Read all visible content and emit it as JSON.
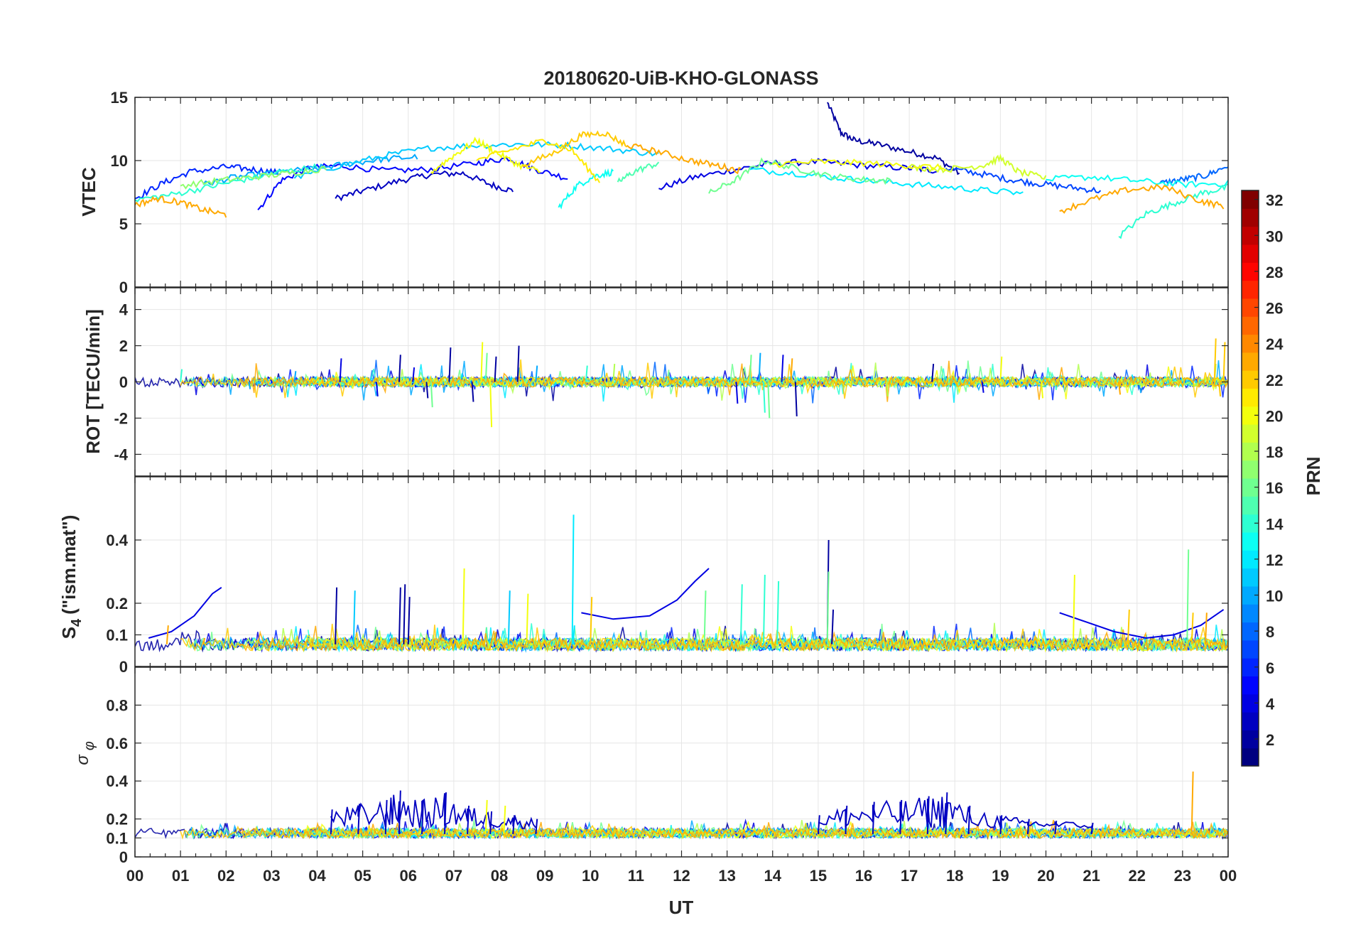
{
  "chart_data": [
    {
      "type": "line",
      "panel": "vtec",
      "title": "20180620-UiB-KHO-GLONASS",
      "xlabel": "",
      "ylabel": "VTEC",
      "xlim": [
        0,
        24
      ],
      "ylim": [
        0,
        15
      ],
      "yticks": [
        0,
        5,
        10,
        15
      ],
      "grid": true,
      "series": [
        {
          "prn": 2,
          "x": [
            15.2,
            15.5,
            15.8,
            16.3,
            17.0,
            17.6,
            18.1
          ],
          "y": [
            14.6,
            12.2,
            11.6,
            11.3,
            10.7,
            10.2,
            9.0
          ]
        },
        {
          "prn": 3,
          "x": [
            4.4,
            5.0,
            5.8,
            6.5,
            7.2,
            7.8,
            8.3
          ],
          "y": [
            7.0,
            7.6,
            8.4,
            8.9,
            9.0,
            8.1,
            7.6
          ]
        },
        {
          "prn": 4,
          "x": [
            11.5,
            12.3,
            13.2,
            14.0,
            15.0,
            16.0,
            17.0,
            17.6
          ],
          "y": [
            7.8,
            8.7,
            9.3,
            9.8,
            9.9,
            9.6,
            9.4,
            9.2
          ]
        },
        {
          "prn": 5,
          "x": [
            2.7,
            3.2,
            3.8,
            4.5,
            5.5,
            6.5,
            7.5,
            8.2,
            8.8,
            9.5
          ],
          "y": [
            6.1,
            8.4,
            9.4,
            9.6,
            9.2,
            9.3,
            9.8,
            10.2,
            9.3,
            8.6
          ]
        },
        {
          "prn": 6,
          "x": [
            0.0,
            0.6,
            1.2,
            2.0,
            2.6,
            3.2
          ],
          "y": [
            7.0,
            8.2,
            9.1,
            9.5,
            9.3,
            9.0
          ]
        },
        {
          "prn": 7,
          "x": [
            17.8,
            18.5,
            19.2,
            19.8,
            20.5,
            21.2
          ],
          "y": [
            9.4,
            9.0,
            8.5,
            8.2,
            7.9,
            7.6
          ]
        },
        {
          "prn": 8,
          "x": [
            22.5,
            23.0,
            23.5,
            24.0
          ],
          "y": [
            8.2,
            8.5,
            8.8,
            9.6
          ]
        },
        {
          "prn": 10,
          "x": [
            1.5,
            2.2,
            3.0,
            3.8,
            4.6,
            5.4,
            6.2
          ],
          "y": [
            8.1,
            8.7,
            9.0,
            9.3,
            9.7,
            10.1,
            10.3
          ]
        },
        {
          "prn": 11,
          "x": [
            3.5,
            4.5,
            5.5,
            6.5,
            7.5,
            8.5,
            9.5,
            10.5,
            11.5
          ],
          "y": [
            8.6,
            9.6,
            10.4,
            11.0,
            11.2,
            11.3,
            11.2,
            10.9,
            10.5
          ]
        },
        {
          "prn": 12,
          "x": [
            13.5,
            14.5,
            15.5,
            16.5,
            17.5,
            18.5,
            19.5
          ],
          "y": [
            9.3,
            9.0,
            8.6,
            8.3,
            8.0,
            7.7,
            7.4
          ]
        },
        {
          "prn": 13,
          "x": [
            9.3,
            9.7,
            10.1,
            10.5
          ],
          "y": [
            6.3,
            8.0,
            8.8,
            9.1
          ]
        },
        {
          "prn": 13,
          "x": [
            20.0,
            21.0,
            22.0,
            23.0,
            24.0
          ],
          "y": [
            8.5,
            8.7,
            8.4,
            8.1,
            8.2
          ]
        },
        {
          "prn": 14,
          "x": [
            0.0,
            0.8,
            1.6,
            2.4,
            3.2,
            4.0
          ],
          "y": [
            6.9,
            7.3,
            7.9,
            8.5,
            9.1,
            9.5
          ]
        },
        {
          "prn": 14,
          "x": [
            21.6,
            22.2,
            22.8,
            23.4,
            24.0
          ],
          "y": [
            4.0,
            5.8,
            6.6,
            7.4,
            7.9
          ]
        },
        {
          "prn": 15,
          "x": [
            10.6,
            11.0,
            11.5
          ],
          "y": [
            8.3,
            9.2,
            9.8
          ]
        },
        {
          "prn": 16,
          "x": [
            12.6,
            13.2,
            13.8,
            14.5,
            15.2,
            16.0,
            16.6
          ],
          "y": [
            7.4,
            8.5,
            10.0,
            9.4,
            8.8,
            8.5,
            8.4
          ]
        },
        {
          "prn": 17,
          "x": [
            1.0,
            1.8,
            2.6,
            3.4,
            4.2
          ],
          "y": [
            8.0,
            8.4,
            8.7,
            9.0,
            9.4
          ]
        },
        {
          "prn": 19,
          "x": [
            17.0,
            17.8,
            18.6,
            19.0,
            19.4,
            20.0
          ],
          "y": [
            9.5,
            9.3,
            9.6,
            10.2,
            9.1,
            8.6
          ]
        },
        {
          "prn": 20,
          "x": [
            6.5,
            7.0,
            7.5,
            7.9,
            8.4,
            8.9
          ],
          "y": [
            9.1,
            10.4,
            11.6,
            10.7,
            9.7,
            9.1
          ]
        },
        {
          "prn": 20,
          "x": [
            14.0,
            15.0,
            16.0,
            17.0,
            17.8
          ],
          "y": [
            9.7,
            9.9,
            9.8,
            9.6,
            9.4
          ]
        },
        {
          "prn": 21,
          "x": [
            7.5,
            8.3,
            9.0,
            9.6,
            10.2
          ],
          "y": [
            10.0,
            10.9,
            11.6,
            10.8,
            8.3
          ]
        },
        {
          "prn": 22,
          "x": [
            8.5,
            9.2,
            9.8,
            10.3,
            10.8
          ],
          "y": [
            9.6,
            10.6,
            12.0,
            12.2,
            11.2
          ]
        },
        {
          "prn": 23,
          "x": [
            0.0,
            0.5,
            1.0,
            1.5,
            2.0
          ],
          "y": [
            6.5,
            7.0,
            6.7,
            6.1,
            5.7
          ]
        },
        {
          "prn": 23,
          "x": [
            10.8,
            11.5,
            12.2,
            12.8,
            13.3
          ],
          "y": [
            11.2,
            10.7,
            10.0,
            9.6,
            9.2
          ]
        },
        {
          "prn": 23,
          "x": [
            20.3,
            21.0,
            21.8,
            22.6,
            23.4,
            23.9
          ],
          "y": [
            6.0,
            6.9,
            7.7,
            7.9,
            6.8,
            6.4
          ]
        }
      ]
    },
    {
      "type": "line",
      "panel": "rot",
      "xlabel": "",
      "ylabel": "ROT [TECU/min]",
      "xlim": [
        0,
        24
      ],
      "ylim": [
        -5.2,
        5.2
      ],
      "yticks": [
        -4,
        -2,
        0,
        2,
        4
      ],
      "grid": true,
      "series": [
        {
          "prn": 2,
          "x": [
            5.8,
            6.4,
            6.9,
            7.4,
            7.9,
            8.4,
            14.5,
            17.5
          ],
          "y": [
            1.5,
            -0.9,
            1.9,
            -1.1,
            1.4,
            2.0,
            -1.9,
            1.0
          ]
        },
        {
          "prn": 4,
          "x": [
            4.5,
            5.3,
            6.1,
            13.2,
            14.2,
            18.6
          ],
          "y": [
            1.3,
            -0.8,
            0.8,
            -1.2,
            1.5,
            -0.6
          ]
        },
        {
          "prn": 10,
          "x": [
            2.5,
            3.5,
            8.8,
            13.7
          ],
          "y": [
            -0.4,
            0.6,
            0.9,
            1.6
          ]
        },
        {
          "prn": 14,
          "x": [
            1.0,
            9.9,
            13.8
          ],
          "y": [
            0.7,
            0.9,
            -1.7
          ]
        },
        {
          "prn": 16,
          "x": [
            6.5,
            7.7,
            13.5,
            13.9
          ],
          "y": [
            -1.4,
            1.6,
            1.5,
            -2.0
          ]
        },
        {
          "prn": 18,
          "x": [
            10.5,
            16.5,
            23.7
          ],
          "y": [
            1.0,
            -0.8,
            1.0
          ]
        },
        {
          "prn": 20,
          "x": [
            7.6,
            7.8,
            19.0,
            19.9
          ],
          "y": [
            2.2,
            -2.5,
            1.4,
            -0.9
          ]
        },
        {
          "prn": 22,
          "x": [
            23.7,
            23.8,
            23.9
          ],
          "y": [
            2.4,
            -0.8,
            2.2
          ]
        },
        {
          "prn": 23,
          "x": [
            14.4,
            21.6
          ],
          "y": [
            1.3,
            -0.7
          ]
        }
      ]
    },
    {
      "type": "line",
      "panel": "s4",
      "xlabel": "",
      "ylabel": "S4 (\"ism.mat\")",
      "ylabel_main": "S",
      "ylabel_sub": "4",
      "ylabel_rest": "(\"ism.mat\")",
      "xlim": [
        0,
        24
      ],
      "ylim": [
        0,
        0.6
      ],
      "yticks": [
        0,
        0.1,
        0.2,
        0.4
      ],
      "grid": true,
      "series": [
        {
          "prn": 4,
          "x": [
            0.3,
            0.8,
            1.3,
            1.7,
            1.9
          ],
          "y": [
            0.09,
            0.11,
            0.16,
            0.23,
            0.25
          ]
        },
        {
          "prn": 4,
          "x": [
            9.8,
            10.5,
            11.3,
            11.9,
            12.3,
            12.6
          ],
          "y": [
            0.17,
            0.15,
            0.16,
            0.21,
            0.27,
            0.31
          ]
        },
        {
          "prn": 4,
          "x": [
            20.3,
            20.9,
            21.5,
            22.2,
            22.8,
            23.4,
            23.9
          ],
          "y": [
            0.17,
            0.14,
            0.11,
            0.09,
            0.1,
            0.13,
            0.18
          ]
        },
        {
          "prn": 2,
          "x": [
            4.4,
            5.8,
            5.9,
            6.0,
            15.2,
            15.3
          ],
          "y": [
            0.25,
            0.25,
            0.26,
            0.22,
            0.4,
            0.18
          ]
        },
        {
          "prn": 11,
          "x": [
            4.8,
            8.2
          ],
          "y": [
            0.24,
            0.24
          ]
        },
        {
          "prn": 12,
          "x": [
            9.6,
            9.62
          ],
          "y": [
            0.48,
            0.13
          ]
        },
        {
          "prn": 14,
          "x": [
            13.3,
            13.8,
            14.1
          ],
          "y": [
            0.26,
            0.29,
            0.27
          ]
        },
        {
          "prn": 16,
          "x": [
            12.5,
            15.2,
            23.1
          ],
          "y": [
            0.24,
            0.3,
            0.37
          ]
        },
        {
          "prn": 20,
          "x": [
            7.2,
            8.6,
            20.6
          ],
          "y": [
            0.31,
            0.23,
            0.29
          ]
        },
        {
          "prn": 22,
          "x": [
            10.0,
            21.8,
            23.2
          ],
          "y": [
            0.22,
            0.18,
            0.17
          ]
        },
        {
          "prn": 23,
          "x": [
            0.7,
            1.5,
            7.9,
            23.5
          ],
          "y": [
            0.13,
            0.09,
            0.11,
            0.17
          ]
        }
      ]
    },
    {
      "type": "line",
      "panel": "sigma_phi",
      "xlabel": "UT",
      "ylabel": "σ φ",
      "ylabel_main": "σ",
      "ylabel_sub": "φ",
      "xlim": [
        0,
        24
      ],
      "ylim": [
        0,
        1
      ],
      "yticks": [
        0,
        0.1,
        0.2,
        0.4,
        0.6,
        0.8
      ],
      "x_tick_labels": [
        "00",
        "01",
        "02",
        "03",
        "04",
        "05",
        "06",
        "07",
        "08",
        "09",
        "10",
        "11",
        "12",
        "13",
        "14",
        "15",
        "16",
        "17",
        "18",
        "19",
        "20",
        "21",
        "22",
        "23",
        "00"
      ],
      "grid": true,
      "series": [
        {
          "prn": 3,
          "x": [
            4.3,
            4.9,
            5.5,
            5.8,
            6.3,
            6.8,
            7.3,
            7.8,
            8.3,
            8.8
          ],
          "y": [
            0.25,
            0.28,
            0.3,
            0.35,
            0.3,
            0.34,
            0.27,
            0.24,
            0.22,
            0.2
          ]
        },
        {
          "prn": 3,
          "x": [
            15.0,
            15.6,
            16.2,
            16.8,
            17.4,
            17.8,
            18.3,
            19.0,
            19.6,
            20.2,
            21.0
          ],
          "y": [
            0.22,
            0.27,
            0.29,
            0.3,
            0.32,
            0.34,
            0.27,
            0.22,
            0.2,
            0.19,
            0.18
          ]
        },
        {
          "prn": 23,
          "x": [
            23.2,
            23.22
          ],
          "y": [
            0.45,
            0.1
          ]
        },
        {
          "prn": 20,
          "x": [
            7.7,
            8.1
          ],
          "y": [
            0.3,
            0.27
          ]
        }
      ]
    }
  ],
  "colorbar": {
    "label": "PRN",
    "min": 1,
    "max": 32,
    "ticks": [
      2,
      4,
      6,
      8,
      10,
      12,
      14,
      16,
      18,
      20,
      22,
      24,
      26,
      28,
      30,
      32
    ]
  }
}
